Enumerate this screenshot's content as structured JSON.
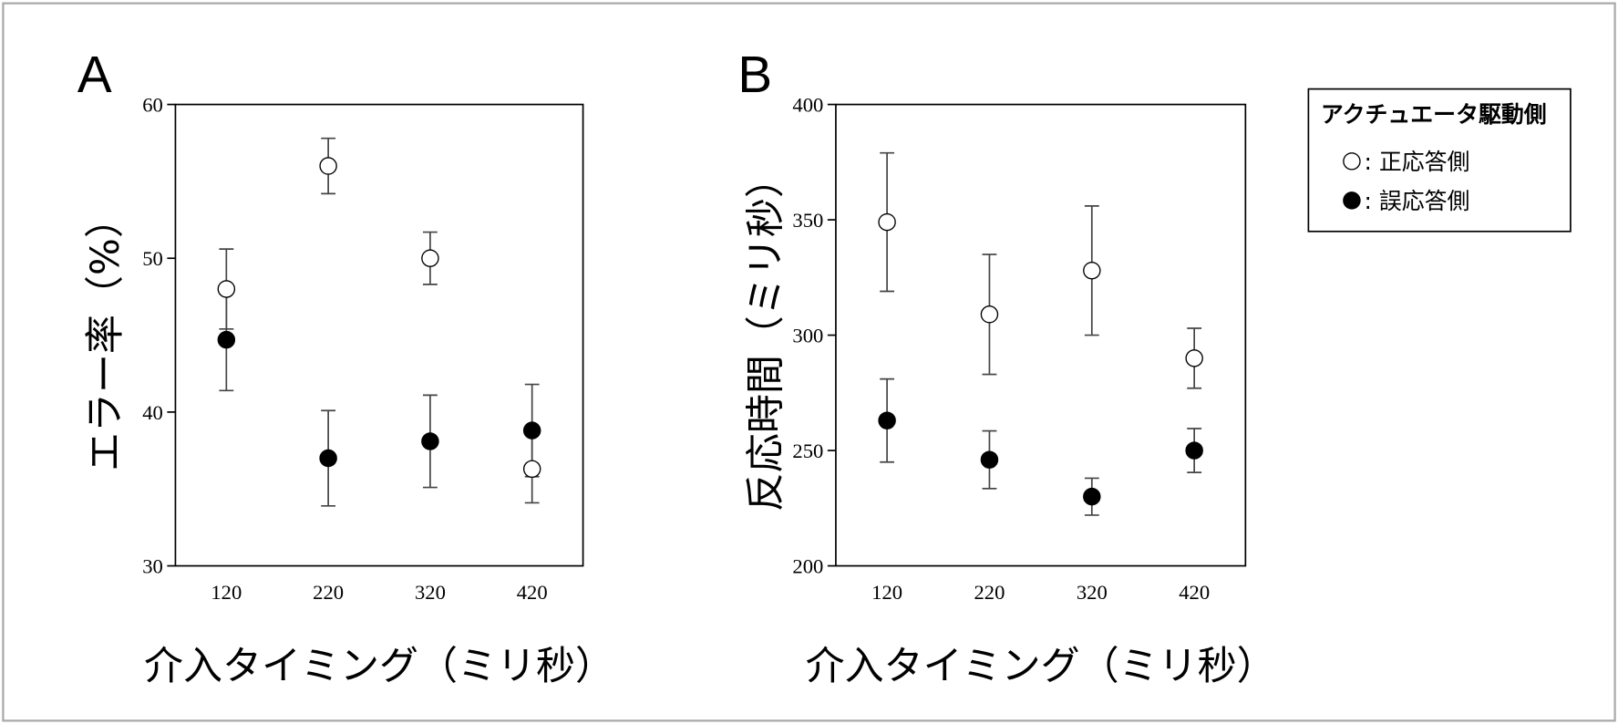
{
  "chart_data": [
    {
      "type": "scatter",
      "panel_label": "A",
      "x_label": "介入タイミング（ミリ秒）",
      "y_label": "エラー率（%）",
      "x": [
        120,
        220,
        320,
        420
      ],
      "xlim": [
        70,
        470
      ],
      "xticks": [
        120,
        220,
        320,
        420
      ],
      "ylim": [
        30,
        60
      ],
      "yticks": [
        30,
        40,
        50,
        60
      ],
      "series": [
        {
          "name": ": 正応答側",
          "color": "#ffffff",
          "values": [
            48,
            56,
            50,
            36.3
          ],
          "errors": [
            2.6,
            1.8,
            1.7,
            2.2
          ]
        },
        {
          "name": ": 誤応答側",
          "color": "#000000",
          "values": [
            44.7,
            37,
            38.1,
            38.8
          ],
          "errors": [
            3.3,
            3.1,
            3.0,
            3.0
          ]
        }
      ]
    },
    {
      "type": "scatter",
      "panel_label": "B",
      "x_label": "介入タイミング（ミリ秒）",
      "y_label": "反応時間（ミリ秒）",
      "x": [
        120,
        220,
        320,
        420
      ],
      "xlim": [
        70,
        470
      ],
      "xticks": [
        120,
        220,
        320,
        420
      ],
      "ylim": [
        200,
        400
      ],
      "yticks": [
        200,
        250,
        300,
        350,
        400
      ],
      "legend_title": "アクチュエータ駆動側",
      "legend_position": "outside-right",
      "series": [
        {
          "name": ": 正応答側",
          "color": "#ffffff",
          "values": [
            349,
            309,
            328,
            290
          ],
          "errors": [
            30,
            26,
            28,
            13
          ]
        },
        {
          "name": ": 誤応答側",
          "color": "#000000",
          "values": [
            263,
            246,
            230,
            250
          ],
          "errors": [
            18,
            12.5,
            8,
            9.5
          ]
        }
      ]
    }
  ]
}
